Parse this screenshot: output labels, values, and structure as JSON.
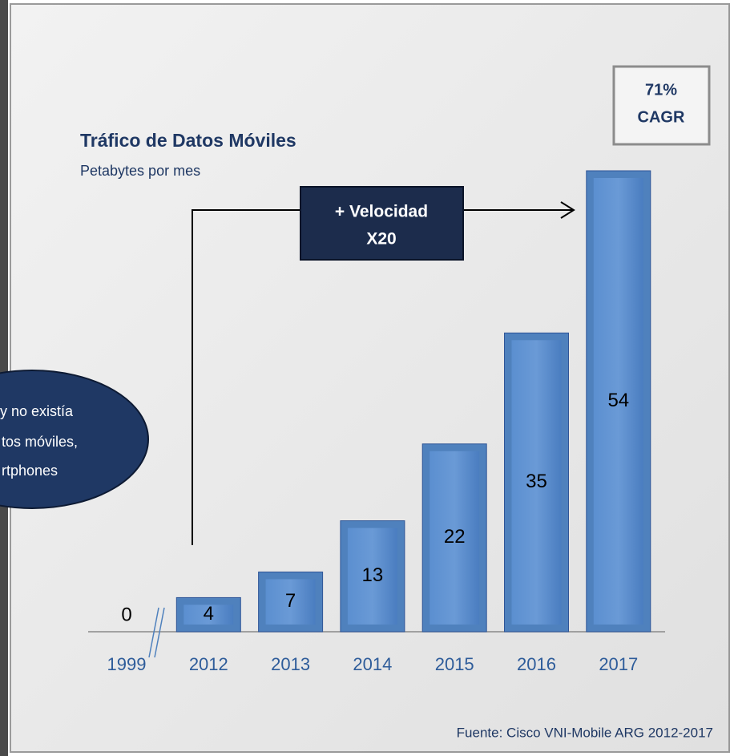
{
  "chart_data": {
    "type": "bar",
    "title": "Tráfico de Datos Móviles",
    "subtitle": "Petabytes por mes",
    "categories": [
      "1999",
      "2012",
      "2013",
      "2014",
      "2015",
      "2016",
      "2017"
    ],
    "values": [
      0,
      4,
      7,
      13,
      22,
      35,
      54
    ],
    "color": "#4f81bd",
    "speed_note": [
      "+ Velocidad",
      "X20"
    ],
    "cagr_note": [
      "71%",
      "CAGR"
    ],
    "side_note": [
      "y no existía",
      "tos móviles,",
      "rtphones"
    ],
    "source": "Fuente: Cisco VNI-Mobile ARG 2012-2017"
  }
}
